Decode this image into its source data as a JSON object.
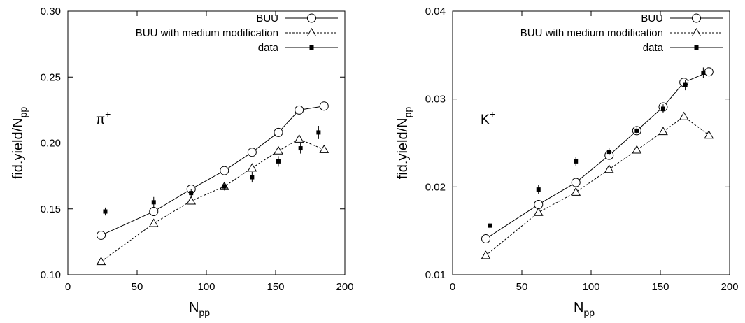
{
  "chart_data": [
    {
      "type": "line",
      "xlabel": "N",
      "xlabel_sub": "pp",
      "ylabel": "fid.yield/N",
      "ylabel_sub": "pp",
      "panel_label": "π",
      "panel_label_sup": "+",
      "xlim": [
        0,
        200
      ],
      "ylim": [
        0.1,
        0.3
      ],
      "xticks": [
        0,
        50,
        100,
        150,
        200
      ],
      "xtick_labels": [
        "0",
        "50",
        "100",
        "150",
        "200"
      ],
      "yticks": [
        0.1,
        0.15,
        0.2,
        0.25,
        0.3
      ],
      "ytick_labels": [
        "0.10",
        "0.15",
        "0.20",
        "0.25",
        "0.30"
      ],
      "grid": false,
      "legend_position": "top-right",
      "series": [
        {
          "name": "BUU",
          "marker": "circle",
          "line": "solid",
          "x": [
            24,
            62,
            89,
            113,
            133,
            152,
            167,
            185
          ],
          "y": [
            0.13,
            0.148,
            0.165,
            0.179,
            0.193,
            0.208,
            0.225,
            0.228
          ]
        },
        {
          "name": "BUU with medium modification",
          "marker": "triangle",
          "line": "dashed",
          "x": [
            24,
            62,
            89,
            113,
            133,
            152,
            167,
            185
          ],
          "y": [
            0.11,
            0.139,
            0.156,
            0.167,
            0.181,
            0.194,
            0.203,
            0.195
          ]
        },
        {
          "name": "data",
          "marker": "square",
          "line": "solid",
          "x": [
            27,
            62,
            89,
            113,
            133,
            152,
            168,
            181
          ],
          "y": [
            0.148,
            0.155,
            0.162,
            0.167,
            0.174,
            0.186,
            0.196,
            0.208
          ],
          "err": [
            0.003,
            0.004,
            0.003,
            0.003,
            0.004,
            0.004,
            0.004,
            0.005
          ]
        }
      ]
    },
    {
      "type": "line",
      "xlabel": "N",
      "xlabel_sub": "pp",
      "ylabel": "fid.yield/N",
      "ylabel_sub": "pp",
      "panel_label": "K",
      "panel_label_sup": "+",
      "xlim": [
        0,
        200
      ],
      "ylim": [
        0.01,
        0.04
      ],
      "xticks": [
        0,
        50,
        100,
        150,
        200
      ],
      "xtick_labels": [
        "0",
        "50",
        "100",
        "150",
        "200"
      ],
      "yticks": [
        0.01,
        0.02,
        0.03,
        0.04
      ],
      "ytick_labels": [
        "0.01",
        "0.02",
        "0.03",
        "0.04"
      ],
      "grid": false,
      "legend_position": "top-right",
      "series": [
        {
          "name": "BUU",
          "marker": "circle",
          "line": "solid",
          "x": [
            24,
            62,
            89,
            113,
            133,
            152,
            167,
            185
          ],
          "y": [
            0.0141,
            0.018,
            0.0205,
            0.0236,
            0.0264,
            0.0291,
            0.0319,
            0.0331
          ]
        },
        {
          "name": "BUU with medium modification",
          "marker": "triangle",
          "line": "dashed",
          "x": [
            24,
            62,
            89,
            113,
            133,
            152,
            167,
            185
          ],
          "y": [
            0.0122,
            0.0171,
            0.0194,
            0.022,
            0.0242,
            0.0263,
            0.028,
            0.0259
          ]
        },
        {
          "name": "data",
          "marker": "square",
          "line": "solid",
          "x": [
            27,
            62,
            89,
            113,
            133,
            152,
            168,
            181
          ],
          "y": [
            0.0156,
            0.0197,
            0.0229,
            0.024,
            0.0264,
            0.0289,
            0.0316,
            0.033
          ],
          "err": [
            0.0004,
            0.0005,
            0.0005,
            0.0004,
            0.0004,
            0.0005,
            0.0006,
            0.0006
          ]
        }
      ]
    }
  ]
}
